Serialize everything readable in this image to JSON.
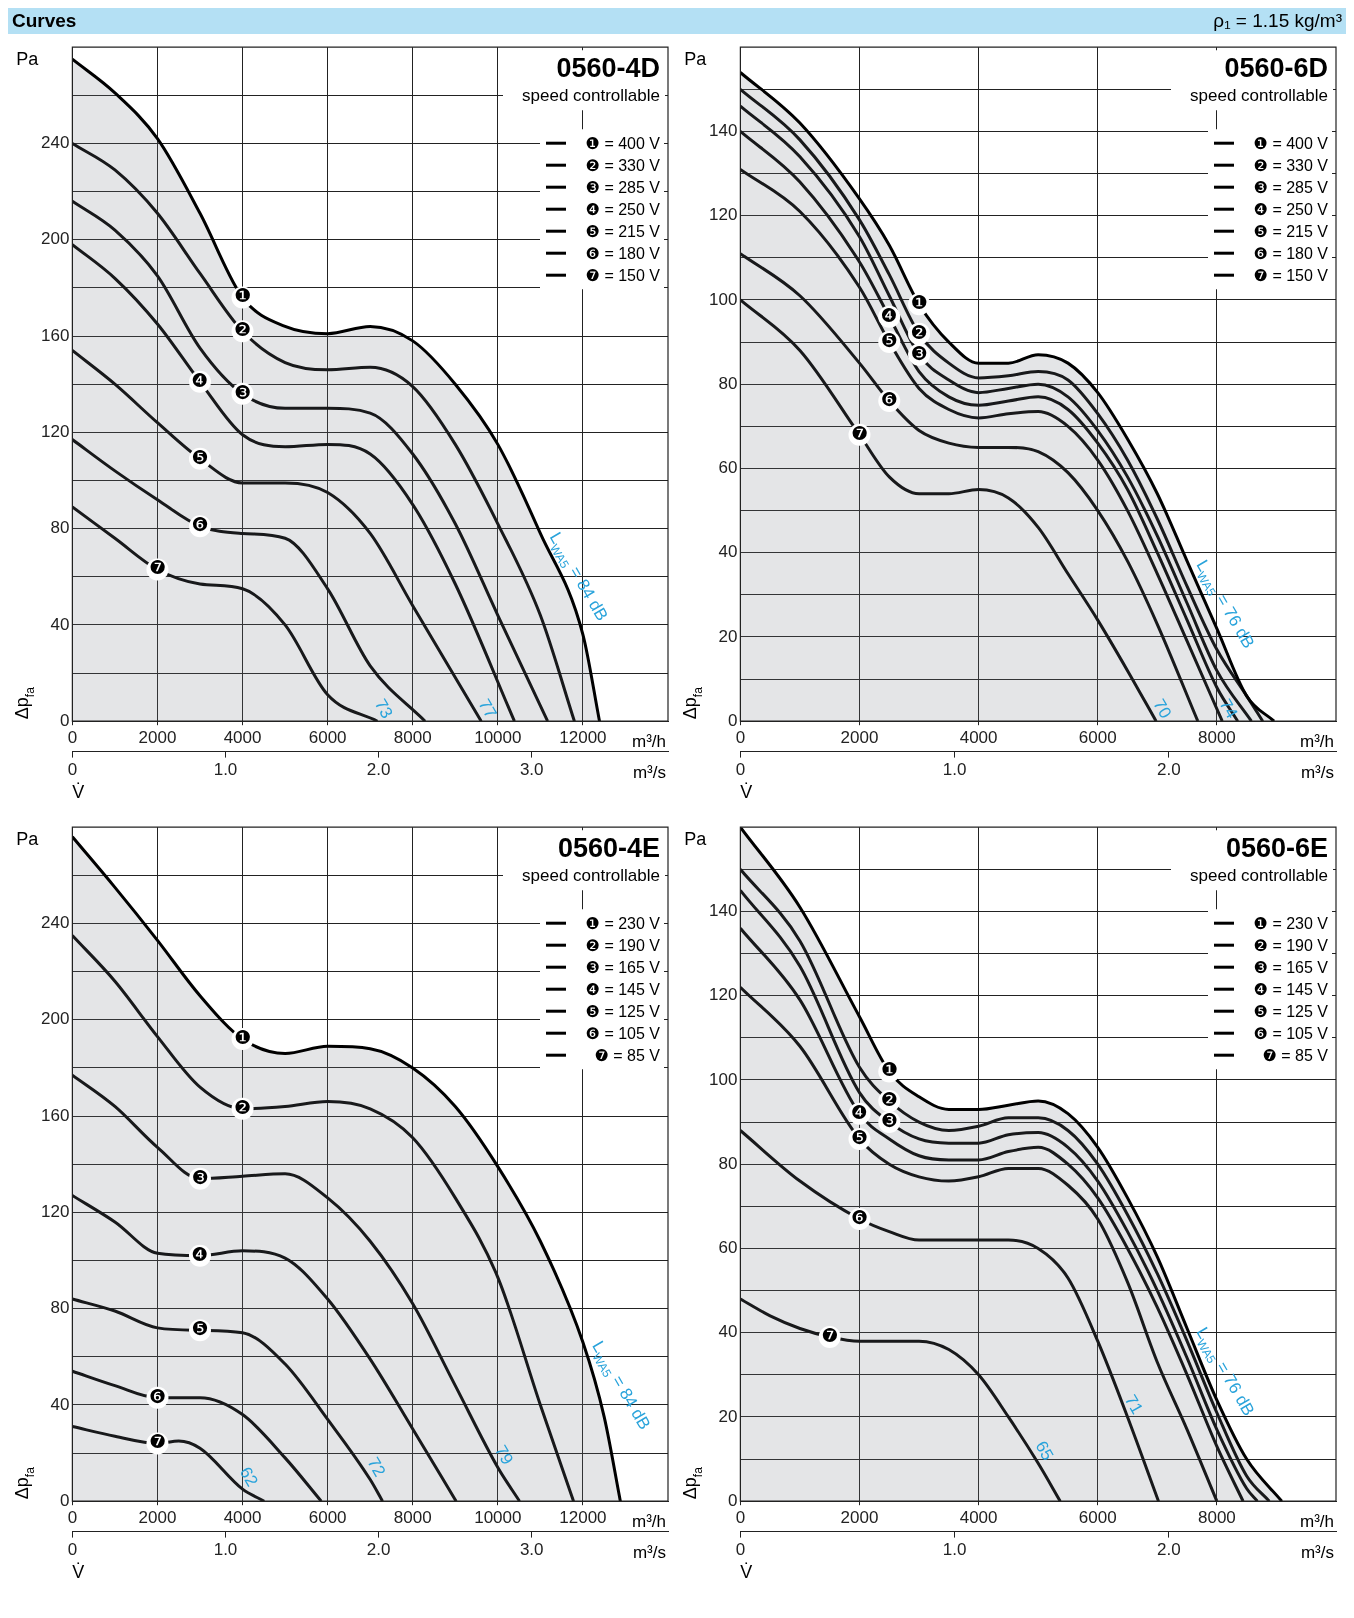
{
  "chart_data": [
    {
      "type": "line",
      "title": "0560-4D",
      "subtitle": "speed controllable",
      "xlabel": "m³/h",
      "x2label": "m³/s",
      "ylabel": "Δp$_{fa}$",
      "xlim": [
        0,
        14000
      ],
      "xticks": [
        0,
        2000,
        4000,
        6000,
        8000,
        10000,
        12000
      ],
      "x2lim": [
        0,
        3.89
      ],
      "x2ticks": [
        {
          "value": 0,
          "label": "0"
        },
        {
          "value": 1,
          "label": "1.0"
        },
        {
          "value": 2,
          "label": "2.0"
        },
        {
          "value": 3,
          "label": "3.0"
        }
      ],
      "ylim": [
        0,
        280
      ],
      "yticks": [
        0,
        {
          "value": 20,
          "label": null
        },
        40,
        {
          "value": 60,
          "label": null
        },
        80,
        {
          "value": 100,
          "label": null
        },
        120,
        {
          "value": 140,
          "label": null
        },
        160,
        {
          "value": 180,
          "label": null
        },
        200,
        {
          "value": 220,
          "label": null
        },
        240,
        {
          "value": 260,
          "label": null
        }
      ],
      "grid": true,
      "legend": "top right",
      "series": [
        {
          "name": "❶ = 400 V",
          "color": "#000000",
          "x": [
            0,
            1000,
            2000,
            3000,
            4000,
            5000,
            6000,
            7000,
            8000,
            9000,
            10000,
            11000,
            12000,
            12390
          ],
          "values": [
            275,
            261,
            242,
            211,
            176,
            164,
            161,
            164,
            158,
            140,
            115,
            78,
            36,
            0
          ]
        },
        {
          "name": "❷ = 330 V",
          "color": "#000000",
          "x": [
            0,
            1000,
            2000,
            3000,
            4000,
            5000,
            6000,
            7000,
            8000,
            9000,
            10000,
            11000,
            11800
          ],
          "values": [
            240,
            229,
            211,
            186,
            162,
            149,
            146,
            147,
            139,
            115,
            82,
            44,
            0
          ]
        },
        {
          "name": "❸ = 285 V",
          "color": "#000000",
          "x": [
            0,
            1000,
            2000,
            3000,
            4000,
            5000,
            6000,
            7000,
            8000,
            9000,
            10000,
            11170
          ],
          "values": [
            216,
            204,
            185,
            155,
            136,
            130,
            130,
            128,
            111,
            82,
            44,
            0
          ]
        },
        {
          "name": "❹ = 250 V",
          "color": "#000000",
          "x": [
            0,
            1000,
            2000,
            3000,
            4000,
            5000,
            6000,
            7000,
            8000,
            9000,
            10390
          ],
          "values": [
            198,
            184,
            165,
            141,
            119,
            114,
            115,
            111,
            90,
            57,
            0
          ]
        },
        {
          "name": "❺ = 215 V",
          "color": "#000000",
          "x": [
            0,
            1000,
            2000,
            3000,
            4000,
            5000,
            6000,
            7000,
            8000,
            9610
          ],
          "values": [
            154,
            140,
            124,
            109,
            99,
            99,
            95,
            78,
            48,
            0
          ]
        },
        {
          "name": "❻ = 180 V",
          "color": "#000000",
          "x": [
            0,
            1000,
            2000,
            3000,
            4000,
            5000,
            6000,
            7000,
            8290
          ],
          "values": [
            117,
            104,
            92,
            81,
            78,
            76,
            55,
            23,
            0
          ]
        },
        {
          "name": "❼ = 150 V",
          "color": "#000000",
          "x": [
            0,
            1000,
            2000,
            3000,
            4000,
            5000,
            6000,
            7170
          ],
          "values": [
            89,
            76,
            63,
            57,
            55,
            40,
            11,
            0
          ]
        }
      ],
      "annotations": [
        "Pa",
        "V̇",
        "Curves",
        {
          "text": "❶",
          "x": 4000,
          "y": 176
        },
        {
          "text": "❷",
          "x": 4000,
          "y": 162
        },
        {
          "text": "❸",
          "x": 4000,
          "y": 136
        },
        {
          "text": "❹",
          "x": 3000,
          "y": 141
        },
        {
          "text": "❺",
          "x": 3000,
          "y": 109
        },
        {
          "text": "❻",
          "x": 3000,
          "y": 81
        },
        {
          "text": "❼",
          "x": 2000,
          "y": 63
        },
        {
          "text": "73",
          "x": 7170,
          "y": 0
        },
        {
          "text": "77",
          "x": 9610,
          "y": 0
        },
        {
          "text": "L$_{WA5}$ = 84 dB",
          "x": 11000,
          "y": 78
        }
      ]
    },
    {
      "type": "line",
      "title": "0560-6D",
      "subtitle": "speed controllable",
      "xlabel": "m³/h",
      "x2label": "m³/s",
      "ylabel": "Δp$_{fa}$",
      "xlim": [
        0,
        10000
      ],
      "xticks": [
        0,
        2000,
        4000,
        6000,
        8000
      ],
      "x2lim": [
        0,
        2.78
      ],
      "x2ticks": [
        {
          "value": 0,
          "label": "0"
        },
        {
          "value": 1,
          "label": "1.0"
        },
        {
          "value": 2,
          "label": "2.0"
        }
      ],
      "ylim": [
        0,
        160
      ],
      "yticks": [
        0,
        {
          "value": 10,
          "label": null
        },
        20,
        {
          "value": 30,
          "label": null
        },
        40,
        {
          "value": 50,
          "label": null
        },
        60,
        {
          "value": 70,
          "label": null
        },
        80,
        {
          "value": 90,
          "label": null
        },
        100,
        {
          "value": 110,
          "label": null
        },
        120,
        {
          "value": 130,
          "label": null
        },
        140,
        {
          "value": 150,
          "label": null
        }
      ],
      "grid": true,
      "legend": "top right",
      "series": [
        {
          "name": "❶ = 400 V",
          "color": "#000000",
          "x": [
            0,
            1000,
            2000,
            2500,
            3000,
            3500,
            4000,
            4500,
            5000,
            5500,
            6000,
            6500,
            7000,
            7500,
            8000,
            8500,
            8960
          ],
          "values": [
            154,
            142,
            124,
            113,
            99,
            90,
            85,
            85,
            87,
            85,
            78,
            67,
            54,
            38,
            22,
            6,
            0
          ]
        },
        {
          "name": "❷ = 330 V",
          "color": "#000000",
          "x": [
            0,
            1000,
            2000,
            2500,
            3000,
            3500,
            4000,
            4500,
            5000,
            5500,
            6000,
            6500,
            7000,
            7500,
            8000,
            8500,
            8770
          ],
          "values": [
            150,
            138,
            119,
            106,
            92,
            85,
            81.5,
            82,
            83,
            81,
            73,
            62,
            48,
            32,
            17,
            6,
            0
          ]
        },
        {
          "name": "❸ = 285 V",
          "color": "#000000",
          "x": [
            0,
            1000,
            2000,
            2500,
            3000,
            3500,
            4000,
            4500,
            5000,
            5500,
            6000,
            6500,
            7000,
            7500,
            8000,
            8580
          ],
          "values": [
            146,
            134,
            115,
            101,
            87,
            81,
            78,
            79,
            80,
            77,
            69,
            58,
            44,
            28,
            12,
            0
          ]
        },
        {
          "name": "❹ = 250 V",
          "color": "#000000",
          "x": [
            0,
            1000,
            2000,
            2500,
            3000,
            3500,
            4000,
            4500,
            5000,
            5500,
            6000,
            6500,
            7000,
            7500,
            8000,
            8350
          ],
          "values": [
            140,
            128,
            109,
            96,
            83,
            77,
            75,
            76,
            77,
            74,
            66,
            55,
            40,
            24,
            8,
            0
          ]
        },
        {
          "name": "❺ = 215 V",
          "color": "#000000",
          "x": [
            0,
            1000,
            2000,
            2500,
            3000,
            3500,
            4000,
            4500,
            5000,
            5500,
            6000,
            6500,
            7000,
            7500,
            8090
          ],
          "values": [
            131,
            121,
            103,
            90,
            79,
            74,
            72,
            73,
            73.5,
            70,
            62,
            50,
            35,
            19,
            0
          ]
        },
        {
          "name": "❻ = 180 V",
          "color": "#000000",
          "x": [
            0,
            1000,
            2000,
            2500,
            3000,
            3500,
            4000,
            4500,
            5000,
            5500,
            6000,
            6500,
            7000,
            7680
          ],
          "values": [
            111,
            101,
            85,
            76,
            69,
            66,
            65,
            65,
            64,
            59,
            50,
            38,
            23,
            0
          ]
        },
        {
          "name": "❼ = 150 V",
          "color": "#000000",
          "x": [
            0,
            1000,
            2000,
            2500,
            3000,
            3500,
            4000,
            4500,
            5000,
            5500,
            6000,
            6500,
            6980
          ],
          "values": [
            100,
            88,
            68,
            58,
            54,
            54,
            55,
            53,
            46,
            35,
            24,
            12,
            0
          ]
        }
      ],
      "annotations": [
        "Pa",
        "V̇",
        "ρ₁ = 1.15 kg/m³",
        {
          "text": "❶",
          "x": 3000,
          "y": 99
        },
        {
          "text": "❷",
          "x": 3000,
          "y": 92
        },
        {
          "text": "❸",
          "x": 3000,
          "y": 87
        },
        {
          "text": "❹",
          "x": 2500,
          "y": 96
        },
        {
          "text": "❺",
          "x": 2500,
          "y": 90
        },
        {
          "text": "❻",
          "x": 2500,
          "y": 76
        },
        {
          "text": "❼",
          "x": 2000,
          "y": 68
        },
        {
          "text": "70",
          "x": 6980,
          "y": 0
        },
        {
          "text": "74",
          "x": 8090,
          "y": 0
        },
        {
          "text": "L$_{WA5}$ = 76 dB",
          "x": 7500,
          "y": 38
        }
      ]
    },
    {
      "type": "line",
      "title": "0560-4E",
      "subtitle": "speed controllable",
      "xlabel": "m³/h",
      "x2label": "m³/s",
      "ylabel": "Δp$_{fa}$",
      "xlim": [
        0,
        14000
      ],
      "xticks": [
        0,
        2000,
        4000,
        6000,
        8000,
        10000,
        12000
      ],
      "x2lim": [
        0,
        3.89
      ],
      "x2ticks": [
        {
          "value": 0,
          "label": "0"
        },
        {
          "value": 1,
          "label": "1.0"
        },
        {
          "value": 2,
          "label": "2.0"
        },
        {
          "value": 3,
          "label": "3.0"
        }
      ],
      "ylim": [
        0,
        280
      ],
      "yticks": [
        0,
        {
          "value": 20,
          "label": null
        },
        40,
        {
          "value": 60,
          "label": null
        },
        80,
        {
          "value": 100,
          "label": null
        },
        120,
        {
          "value": 140,
          "label": null
        },
        160,
        {
          "value": 180,
          "label": null
        },
        200,
        {
          "value": 220,
          "label": null
        },
        240,
        {
          "value": 260,
          "label": null
        }
      ],
      "grid": true,
      "legend": "top right",
      "series": [
        {
          "name": "❶ = 230 V",
          "color": "#000000",
          "x": [
            0,
            1000,
            2000,
            3000,
            4000,
            5000,
            6000,
            7000,
            8000,
            9000,
            10000,
            11000,
            12000,
            12500,
            12880
          ],
          "values": [
            276,
            255,
            233,
            210,
            192,
            186,
            189,
            188,
            180,
            164,
            139,
            108,
            66,
            35,
            0
          ]
        },
        {
          "name": "❷ = 190 V",
          "color": "#000000",
          "x": [
            0,
            1000,
            2000,
            3000,
            4000,
            5000,
            6000,
            7000,
            8000,
            9000,
            10000,
            11000,
            11780
          ],
          "values": [
            235,
            216,
            193,
            172,
            163,
            164,
            166,
            163,
            151,
            126,
            93,
            40,
            0
          ]
        },
        {
          "name": "❸ = 165 V",
          "color": "#000000",
          "x": [
            0,
            1000,
            2000,
            3000,
            4000,
            5000,
            6000,
            7000,
            8000,
            9000,
            10000,
            10510
          ],
          "values": [
            177,
            164,
            147,
            134,
            135,
            136,
            126,
            108,
            82,
            48,
            14,
            0
          ]
        },
        {
          "name": "❹ = 145 V",
          "color": "#000000",
          "x": [
            0,
            1000,
            2000,
            3000,
            4000,
            5000,
            6000,
            7000,
            8000,
            9020
          ],
          "values": [
            127,
            116,
            103,
            102,
            104,
            101,
            84,
            59,
            30,
            0
          ]
        },
        {
          "name": "❺ = 125 V",
          "color": "#000000",
          "x": [
            0,
            1000,
            2000,
            3000,
            4000,
            5000,
            6000,
            7000,
            7290
          ],
          "values": [
            84,
            79,
            72,
            71,
            70,
            57,
            34,
            9,
            0
          ]
        },
        {
          "name": "❻ = 105 V",
          "color": "#000000",
          "x": [
            0,
            1000,
            2000,
            3000,
            4000,
            5000,
            5850
          ],
          "values": [
            54,
            48,
            43,
            43,
            36,
            18,
            0
          ]
        },
        {
          "name": "❼ = 85 V",
          "color": "#000000",
          "x": [
            0,
            1000,
            2000,
            2500,
            3000,
            4000,
            4510
          ],
          "values": [
            31,
            27,
            24,
            25,
            22,
            5,
            0
          ]
        }
      ],
      "annotations": [
        "Pa",
        "V̇",
        {
          "text": "❶",
          "x": 4000,
          "y": 192
        },
        {
          "text": "❷",
          "x": 4000,
          "y": 163
        },
        {
          "text": "❸",
          "x": 3000,
          "y": 134
        },
        {
          "text": "❹",
          "x": 3000,
          "y": 102
        },
        {
          "text": "❺",
          "x": 3000,
          "y": 71
        },
        {
          "text": "❻",
          "x": 2000,
          "y": 43
        },
        {
          "text": "❼",
          "x": 2000,
          "y": 24
        },
        {
          "text": "62",
          "x": 4000,
          "y": 5
        },
        {
          "text": "72",
          "x": 7000,
          "y": 9
        },
        {
          "text": "79",
          "x": 10000,
          "y": 14
        },
        {
          "text": "L$_{WA5}$ = 84 dB",
          "x": 12000,
          "y": 66
        }
      ]
    },
    {
      "type": "line",
      "title": "0560-6E",
      "subtitle": "speed controllable",
      "xlabel": "m³/h",
      "x2label": "m³/s",
      "ylabel": "Δp$_{fa}$",
      "xlim": [
        0,
        10000
      ],
      "xticks": [
        0,
        2000,
        4000,
        6000,
        8000
      ],
      "x2lim": [
        0,
        2.78
      ],
      "x2ticks": [
        {
          "value": 0,
          "label": "0"
        },
        {
          "value": 1,
          "label": "1.0"
        },
        {
          "value": 2,
          "label": "2.0"
        }
      ],
      "ylim": [
        0,
        160
      ],
      "yticks": [
        0,
        {
          "value": 10,
          "label": null
        },
        20,
        {
          "value": 30,
          "label": null
        },
        40,
        {
          "value": 50,
          "label": null
        },
        60,
        {
          "value": 70,
          "label": null
        },
        80,
        {
          "value": 90,
          "label": null
        },
        100,
        {
          "value": 110,
          "label": null
        },
        120,
        {
          "value": 130,
          "label": null
        },
        140,
        {
          "value": 150,
          "label": null
        }
      ],
      "grid": true,
      "legend": "top right",
      "series": [
        {
          "name": "❶ = 230 V",
          "color": "#000000",
          "x": [
            0,
            1000,
            2000,
            2500,
            3000,
            3500,
            4000,
            4500,
            5000,
            5500,
            6000,
            6500,
            7000,
            7500,
            8000,
            8500,
            9090
          ],
          "values": [
            160,
            141,
            115,
            102,
            96,
            93,
            93,
            94,
            95,
            92,
            84,
            72,
            58,
            41,
            24,
            10,
            0
          ]
        },
        {
          "name": "❷ = 190 V",
          "color": "#000000",
          "x": [
            0,
            1000,
            2000,
            2500,
            3000,
            3500,
            4000,
            4500,
            5000,
            5500,
            6000,
            6500,
            7000,
            7500,
            8000,
            8500,
            8880
          ],
          "values": [
            150,
            133,
            103,
            95,
            90,
            88,
            89,
            91,
            91,
            88,
            80,
            68,
            54,
            38,
            21,
            6,
            0
          ]
        },
        {
          "name": "❸ = 165 V",
          "color": "#000000",
          "x": [
            0,
            1000,
            2000,
            2500,
            3000,
            3500,
            4000,
            4500,
            5000,
            5500,
            6000,
            6500,
            7000,
            7500,
            8000,
            8500,
            8680
          ],
          "values": [
            145,
            127,
            97,
            90,
            86,
            85,
            85,
            87,
            87.5,
            84,
            76,
            64,
            50,
            34,
            17,
            3,
            0
          ]
        },
        {
          "name": "❹ = 145 V",
          "color": "#000000",
          "x": [
            0,
            1000,
            2000,
            2500,
            3000,
            3500,
            4000,
            4500,
            5000,
            5500,
            6000,
            6500,
            7000,
            7500,
            8000,
            8440
          ],
          "values": [
            136,
            119,
            92,
            86,
            82,
            81,
            81,
            83,
            84,
            80,
            72,
            60,
            46,
            30,
            13,
            0
          ]
        },
        {
          "name": "❺ = 125 V",
          "color": "#000000",
          "x": [
            0,
            1000,
            2000,
            2500,
            3000,
            3500,
            4000,
            4500,
            5000,
            5500,
            6000,
            6500,
            7000,
            7500,
            8000
          ],
          "values": [
            122,
            108,
            86,
            80,
            77,
            76,
            77,
            79,
            79,
            75,
            67,
            52,
            33,
            17,
            0
          ]
        },
        {
          "name": "❻ = 105 V",
          "color": "#000000",
          "x": [
            0,
            1000,
            2000,
            2500,
            3000,
            3500,
            4000,
            4500,
            5000,
            5500,
            6000,
            6500,
            7020
          ],
          "values": [
            88,
            76,
            67,
            64,
            62,
            62,
            62,
            62,
            60,
            53,
            38,
            20,
            0
          ]
        },
        {
          "name": "❼ = 85 V",
          "color": "#000000",
          "x": [
            0,
            500,
            1000,
            1500,
            2000,
            2500,
            3000,
            3500,
            4000,
            4500,
            5000,
            5370
          ],
          "values": [
            48,
            44,
            41,
            39,
            38,
            38,
            38,
            36,
            30,
            20,
            9,
            0
          ]
        }
      ],
      "annotations": [
        "Pa",
        "V̇",
        {
          "text": "❶",
          "x": 2500,
          "y": 102
        },
        {
          "text": "❷",
          "x": 2500,
          "y": 95
        },
        {
          "text": "❸",
          "x": 2500,
          "y": 90
        },
        {
          "text": "❹",
          "x": 2000,
          "y": 92
        },
        {
          "text": "❺",
          "x": 2000,
          "y": 86
        },
        {
          "text": "❻",
          "x": 2000,
          "y": 67
        },
        {
          "text": "❼",
          "x": 1500,
          "y": 39
        },
        {
          "text": "65",
          "x": 5000,
          "y": 9
        },
        {
          "text": "71",
          "x": 6500,
          "y": 20
        },
        {
          "text": "L$_{WA5}$ = 76 dB",
          "x": 7500,
          "y": 41
        }
      ]
    }
  ]
}
